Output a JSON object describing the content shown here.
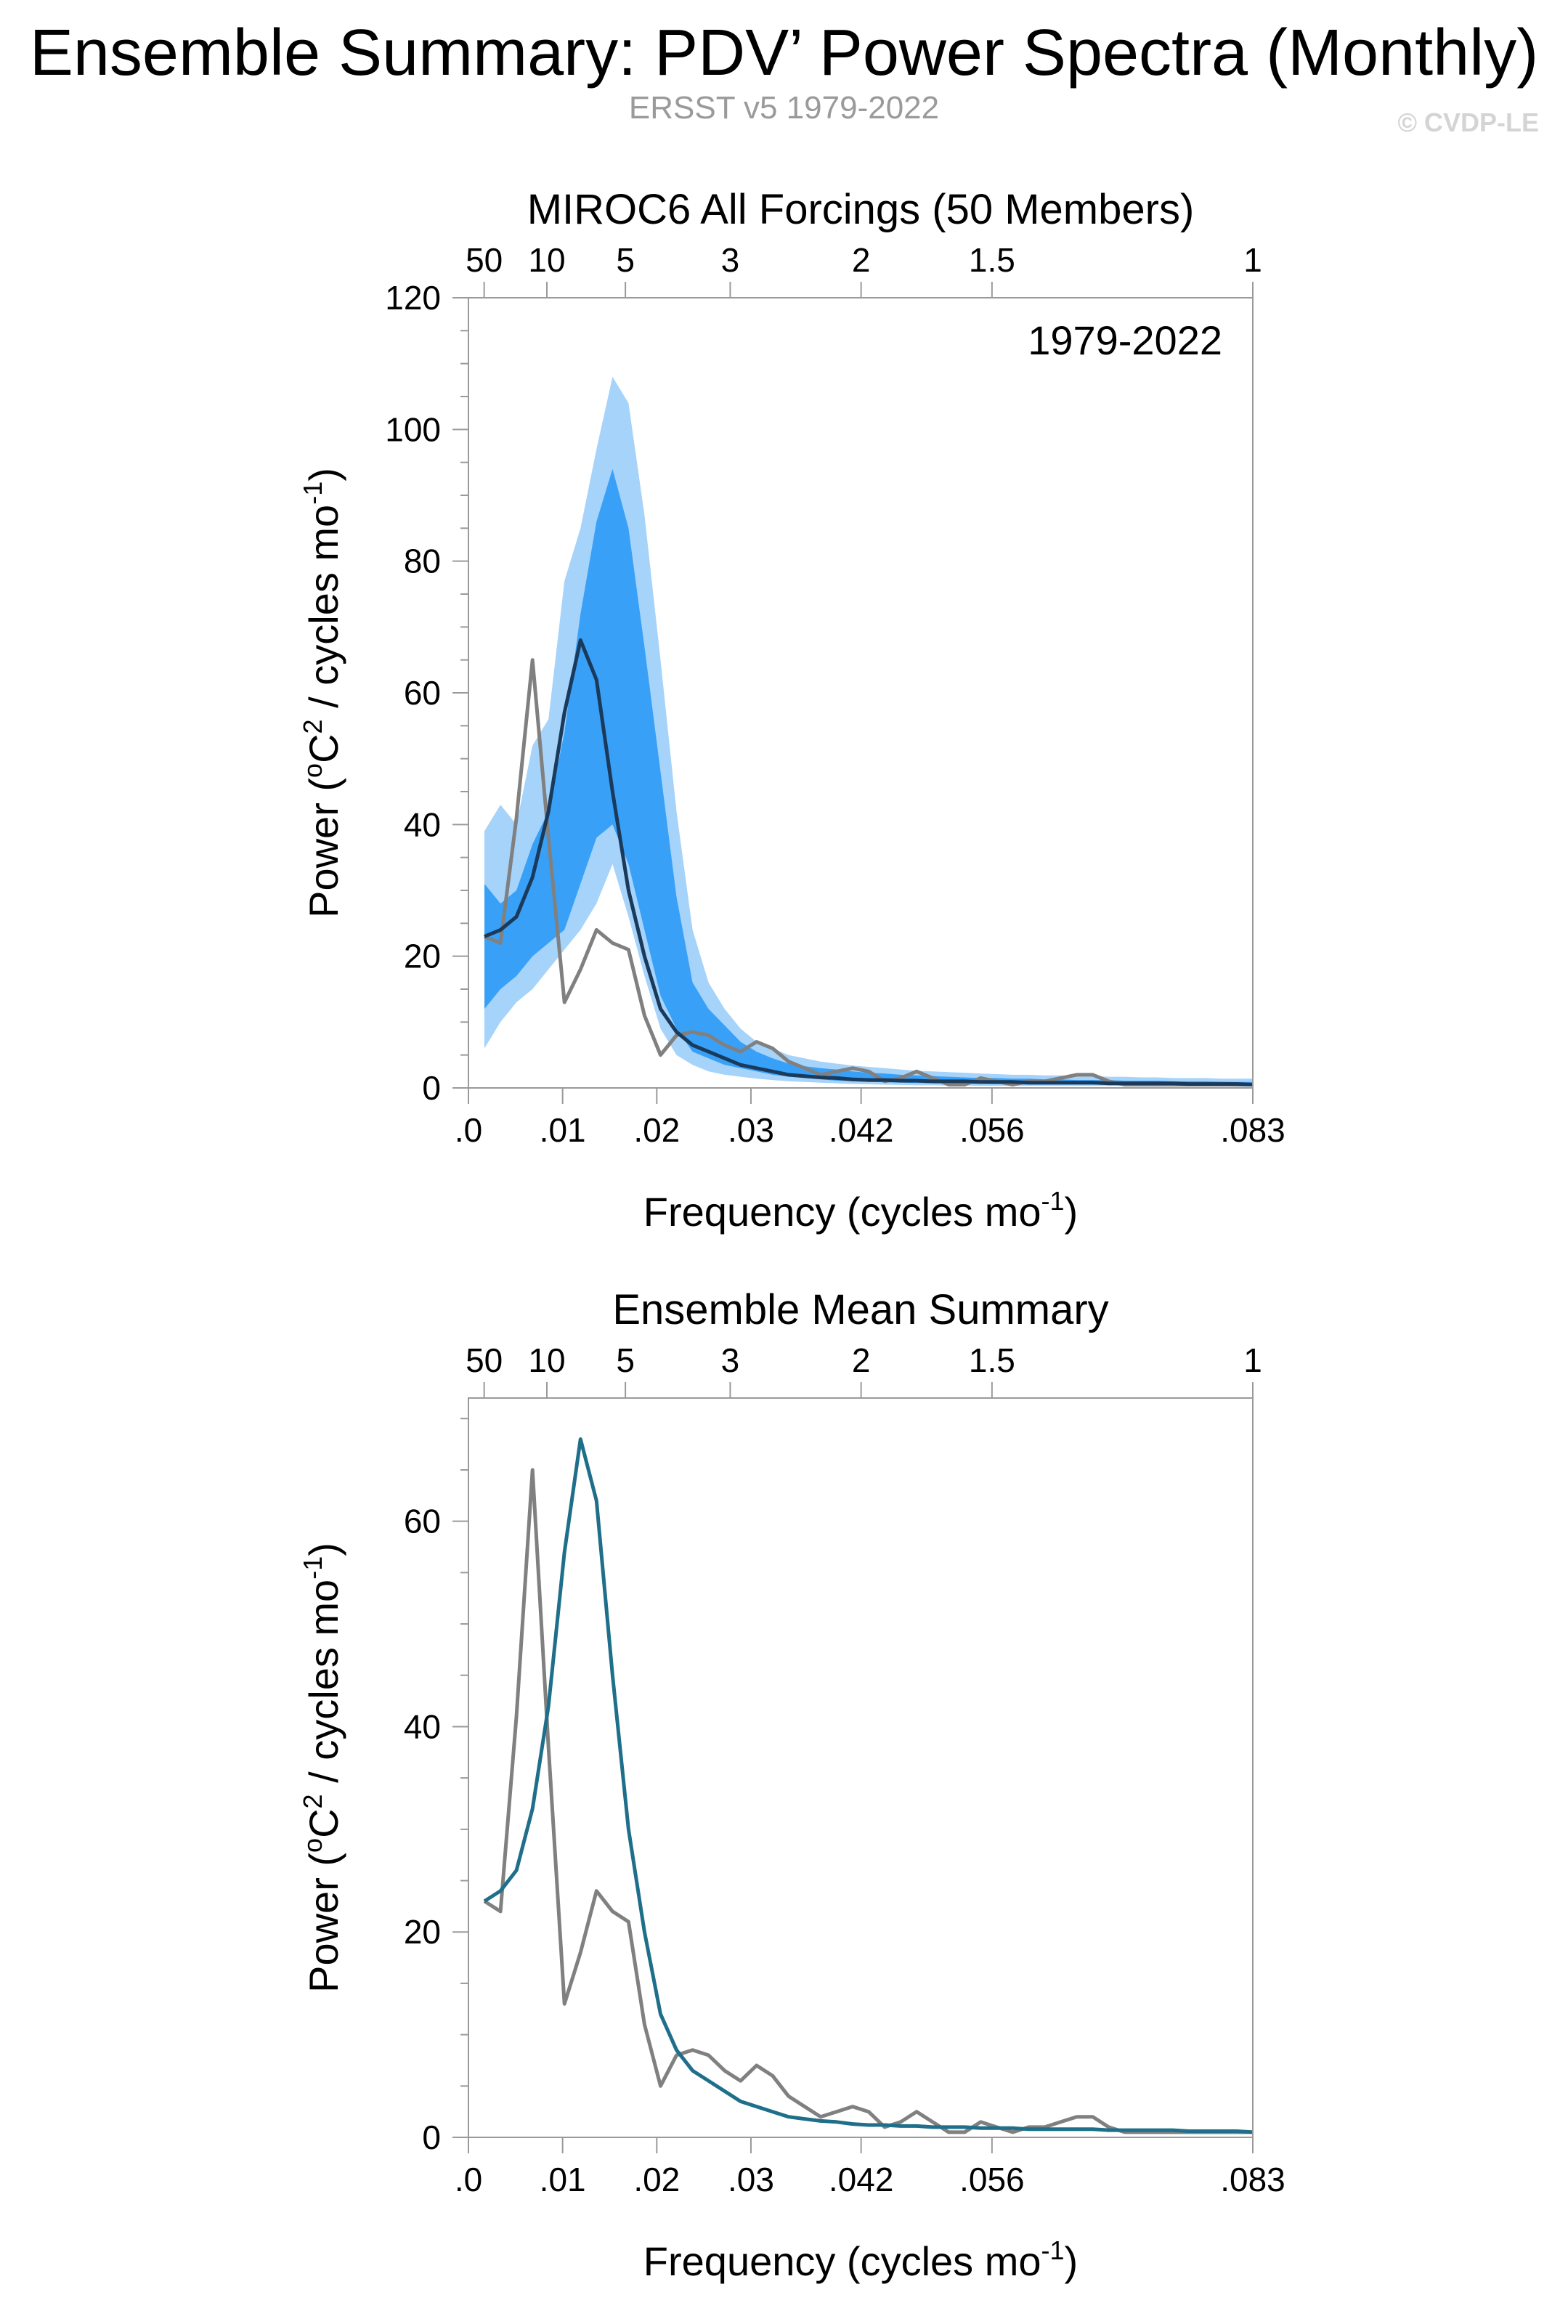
{
  "page": {
    "title": "Ensemble Summary: PDV’ Power Spectra (Monthly)",
    "subtitle": "ERSST v5 1979-2022",
    "copyright": "© CVDP-LE"
  },
  "colors": {
    "model": "#1f6f8b",
    "obs": "#808080",
    "band_outer": "#a6d3fa",
    "band_inner": "#39a0f7",
    "mean_dark": "#1a3a5c",
    "axis": "#9a9a9a"
  },
  "chart_data": [
    {
      "type": "area",
      "title": "MIROC6 All Forcings (50 Members)",
      "annotation": "1979-2022",
      "xlabel": "Frequency (cycles mo",
      "xlabel_sup": "-1",
      "xlabel_tail": ")",
      "ylabel": "Power (",
      "ylabel_sup1": "o",
      "ylabel_mid": "C",
      "ylabel_sup2": "2",
      "ylabel_mid2": " / cycles mo",
      "ylabel_sup3": "-1",
      "ylabel_tail": ")",
      "xlim": [
        0,
        0.0833
      ],
      "ylim": [
        0,
        120
      ],
      "x_ticks": [
        {
          "v": 0.0,
          "label": ".0"
        },
        {
          "v": 0.01,
          "label": ".01"
        },
        {
          "v": 0.02,
          "label": ".02"
        },
        {
          "v": 0.03,
          "label": ".03"
        },
        {
          "v": 0.0417,
          "label": ".042"
        },
        {
          "v": 0.0556,
          "label": ".056"
        },
        {
          "v": 0.0833,
          "label": ".083"
        }
      ],
      "y_ticks": [
        0,
        20,
        40,
        60,
        80,
        100,
        120
      ],
      "period_ticks": [
        {
          "v": 0.00167,
          "label": "50"
        },
        {
          "v": 0.00833,
          "label": "10"
        },
        {
          "v": 0.01667,
          "label": "5"
        },
        {
          "v": 0.0278,
          "label": "3"
        },
        {
          "v": 0.0417,
          "label": "2"
        },
        {
          "v": 0.0556,
          "label": "1.5"
        },
        {
          "v": 0.0833,
          "label": "1"
        }
      ],
      "x": [
        0.0017,
        0.0034,
        0.0051,
        0.0068,
        0.0085,
        0.0102,
        0.0119,
        0.0136,
        0.0153,
        0.017,
        0.0187,
        0.0204,
        0.0221,
        0.0238,
        0.0255,
        0.0272,
        0.0289,
        0.0306,
        0.0323,
        0.034,
        0.0357,
        0.0374,
        0.0391,
        0.0408,
        0.0425,
        0.0442,
        0.0459,
        0.0476,
        0.0493,
        0.051,
        0.0527,
        0.0544,
        0.0561,
        0.0578,
        0.0595,
        0.0612,
        0.0629,
        0.0646,
        0.0663,
        0.068,
        0.0697,
        0.0714,
        0.0731,
        0.0748,
        0.0765,
        0.0782,
        0.0799,
        0.0816,
        0.0833
      ],
      "series": [
        {
          "name": "",
          "role": "p05",
          "values": [
            6,
            10,
            13,
            15,
            18,
            21,
            24,
            28,
            34,
            26,
            17,
            9,
            5,
            3.5,
            2.5,
            2,
            1.7,
            1.4,
            1.2,
            1,
            0.9,
            0.8,
            0.7,
            0.6,
            0.55,
            0.5,
            0.45,
            0.4,
            0.4,
            0.35,
            0.35,
            0.3,
            0.3,
            0.3,
            0.3,
            0.3,
            0.3,
            0.3,
            0.3,
            0.3,
            0.3,
            0.3,
            0.3,
            0.3,
            0.25,
            0.25,
            0.25,
            0.2,
            0.2
          ]
        },
        {
          "name": "",
          "role": "p25",
          "values": [
            12,
            15,
            17,
            20,
            22,
            24,
            31,
            38,
            40,
            34,
            24,
            14,
            9,
            5.5,
            4.5,
            3.5,
            3,
            2.5,
            2,
            1.7,
            1.5,
            1.3,
            1.1,
            1,
            0.9,
            0.85,
            0.8,
            0.75,
            0.7,
            0.65,
            0.6,
            0.6,
            0.55,
            0.55,
            0.5,
            0.5,
            0.5,
            0.5,
            0.5,
            0.5,
            0.5,
            0.5,
            0.5,
            0.45,
            0.45,
            0.45,
            0.4,
            0.4,
            0.4
          ]
        },
        {
          "name": "",
          "role": "p75",
          "values": [
            31,
            28,
            30,
            37,
            42,
            54,
            72,
            86,
            94,
            85,
            67,
            48,
            29,
            16,
            12,
            9.5,
            7,
            5.5,
            4.5,
            3.7,
            3.3,
            3,
            2.8,
            2.5,
            2.3,
            2.2,
            2,
            1.9,
            1.8,
            1.7,
            1.6,
            1.5,
            1.5,
            1.4,
            1.4,
            1.3,
            1.3,
            1.2,
            1.2,
            1.2,
            1.1,
            1.1,
            1.1,
            1,
            1,
            1,
            0.95,
            0.9,
            0.9
          ]
        },
        {
          "name": "",
          "role": "p95",
          "values": [
            39,
            43,
            40,
            52,
            56,
            77,
            85,
            97,
            108,
            104,
            87,
            65,
            42,
            24,
            16,
            12,
            9,
            7,
            6,
            5,
            4.5,
            4,
            3.7,
            3.4,
            3.2,
            3,
            2.8,
            2.6,
            2.5,
            2.4,
            2.3,
            2.2,
            2.1,
            2,
            2,
            1.9,
            1.9,
            1.8,
            1.8,
            1.7,
            1.7,
            1.6,
            1.6,
            1.5,
            1.5,
            1.5,
            1.4,
            1.4,
            1.4
          ]
        },
        {
          "name": "",
          "role": "mean",
          "values": [
            23,
            24,
            26,
            32,
            42,
            57,
            68,
            62,
            45,
            30,
            20,
            12,
            8.5,
            6.5,
            5.5,
            4.5,
            3.5,
            3,
            2.5,
            2,
            1.8,
            1.6,
            1.5,
            1.3,
            1.2,
            1.2,
            1.1,
            1.1,
            1,
            1,
            1,
            0.9,
            0.9,
            0.9,
            0.8,
            0.8,
            0.8,
            0.8,
            0.8,
            0.7,
            0.7,
            0.7,
            0.7,
            0.7,
            0.6,
            0.6,
            0.6,
            0.6,
            0.5
          ]
        },
        {
          "name": "",
          "role": "obs",
          "values": [
            23,
            22,
            41,
            65,
            38,
            13,
            18,
            24,
            22,
            21,
            11,
            5,
            8,
            8.5,
            8,
            6.5,
            5.5,
            7,
            6,
            4,
            3,
            2,
            2.5,
            3,
            2.5,
            1,
            1.5,
            2.5,
            1.5,
            0.5,
            0.5,
            1.5,
            1,
            0.5,
            1,
            1,
            1.5,
            2,
            2,
            1,
            0.5,
            0.5,
            0.5,
            0.5,
            0.5,
            0.5,
            0.5,
            0.5,
            0.5
          ]
        }
      ]
    },
    {
      "type": "line",
      "title": "Ensemble Mean Summary",
      "xlabel": "Frequency (cycles mo",
      "xlabel_sup": "-1",
      "xlabel_tail": ")",
      "ylabel": "Power (",
      "ylabel_sup1": "o",
      "ylabel_mid": "C",
      "ylabel_sup2": "2",
      "ylabel_mid2": " / cycles mo",
      "ylabel_sup3": "-1",
      "ylabel_tail": ")",
      "xlim": [
        0,
        0.0833
      ],
      "ylim": [
        0,
        72
      ],
      "x_ticks": [
        {
          "v": 0.0,
          "label": ".0"
        },
        {
          "v": 0.01,
          "label": ".01"
        },
        {
          "v": 0.02,
          "label": ".02"
        },
        {
          "v": 0.03,
          "label": ".03"
        },
        {
          "v": 0.0417,
          "label": ".042"
        },
        {
          "v": 0.0556,
          "label": ".056"
        },
        {
          "v": 0.0833,
          "label": ".083"
        }
      ],
      "y_ticks": [
        0,
        20,
        40,
        60
      ],
      "period_ticks": [
        {
          "v": 0.00167,
          "label": "50"
        },
        {
          "v": 0.00833,
          "label": "10"
        },
        {
          "v": 0.01667,
          "label": "5"
        },
        {
          "v": 0.0278,
          "label": "3"
        },
        {
          "v": 0.0417,
          "label": "2"
        },
        {
          "v": 0.0556,
          "label": "1.5"
        },
        {
          "v": 0.0833,
          "label": "1"
        }
      ],
      "x": [
        0.0017,
        0.0034,
        0.0051,
        0.0068,
        0.0085,
        0.0102,
        0.0119,
        0.0136,
        0.0153,
        0.017,
        0.0187,
        0.0204,
        0.0221,
        0.0238,
        0.0255,
        0.0272,
        0.0289,
        0.0306,
        0.0323,
        0.034,
        0.0357,
        0.0374,
        0.0391,
        0.0408,
        0.0425,
        0.0442,
        0.0459,
        0.0476,
        0.0493,
        0.051,
        0.0527,
        0.0544,
        0.0561,
        0.0578,
        0.0595,
        0.0612,
        0.0629,
        0.0646,
        0.0663,
        0.068,
        0.0697,
        0.0714,
        0.0731,
        0.0748,
        0.0765,
        0.0782,
        0.0799,
        0.0816,
        0.0833
      ],
      "series": [
        {
          "name": "",
          "role": "mean",
          "values": [
            23,
            24,
            26,
            32,
            42,
            57,
            68,
            62,
            45,
            30,
            20,
            12,
            8.5,
            6.5,
            5.5,
            4.5,
            3.5,
            3,
            2.5,
            2,
            1.8,
            1.6,
            1.5,
            1.3,
            1.2,
            1.2,
            1.1,
            1.1,
            1,
            1,
            1,
            0.9,
            0.9,
            0.9,
            0.8,
            0.8,
            0.8,
            0.8,
            0.8,
            0.7,
            0.7,
            0.7,
            0.7,
            0.7,
            0.6,
            0.6,
            0.6,
            0.6,
            0.5
          ]
        },
        {
          "name": "",
          "role": "obs",
          "values": [
            23,
            22,
            41,
            65,
            38,
            13,
            18,
            24,
            22,
            21,
            11,
            5,
            8,
            8.5,
            8,
            6.5,
            5.5,
            7,
            6,
            4,
            3,
            2,
            2.5,
            3,
            2.5,
            1,
            1.5,
            2.5,
            1.5,
            0.5,
            0.5,
            1.5,
            1,
            0.5,
            1,
            1,
            1.5,
            2,
            2,
            1,
            0.5,
            0.5,
            0.5,
            0.5,
            0.5,
            0.5,
            0.5,
            0.5,
            0.5
          ]
        }
      ]
    }
  ]
}
